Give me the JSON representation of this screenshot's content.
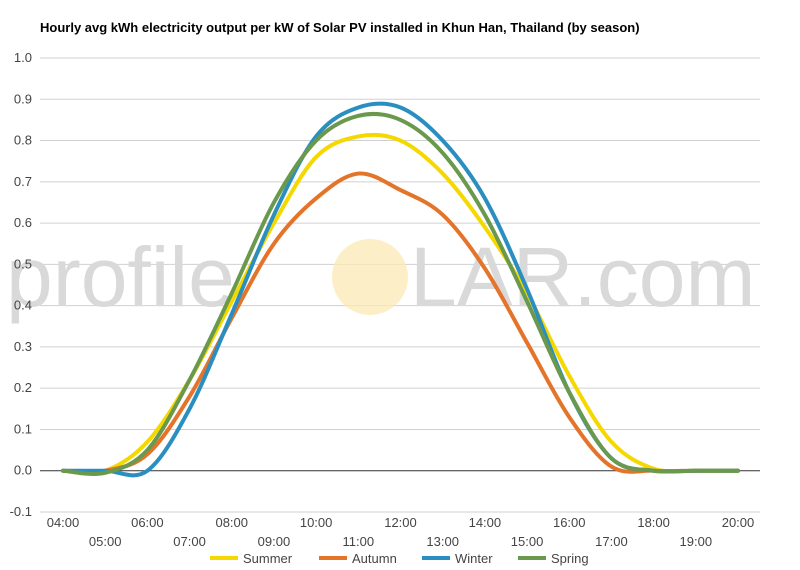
{
  "chart_data": {
    "type": "line",
    "title": "Hourly avg kWh electricity output per kW of Solar PV installed in Khun Han, Thailand (by season)",
    "watermark": {
      "left": "profile",
      "right": "LAR.com"
    },
    "xlabel": "",
    "ylabel": "",
    "ylim": [
      -0.1,
      1.0
    ],
    "yticks": [
      "-0.1",
      "0.0",
      "0.1",
      "0.2",
      "0.3",
      "0.4",
      "0.5",
      "0.6",
      "0.7",
      "0.8",
      "0.9",
      "1.0"
    ],
    "x_tick_labels_upper": [
      "04:00",
      "06:00",
      "08:00",
      "10:00",
      "12:00",
      "14:00",
      "16:00",
      "18:00",
      "20:00"
    ],
    "x_tick_labels_lower": [
      "05:00",
      "07:00",
      "09:00",
      "11:00",
      "13:00",
      "15:00",
      "17:00",
      "19:00"
    ],
    "x": [
      4,
      5,
      6,
      7,
      8,
      9,
      10,
      11,
      12,
      13,
      14,
      15,
      16,
      17,
      18,
      19,
      20
    ],
    "grid": true,
    "legend_position": "bottom",
    "series": [
      {
        "name": "Summer",
        "color": "#f5d800",
        "values": [
          0.0,
          0.0,
          0.07,
          0.22,
          0.41,
          0.6,
          0.76,
          0.81,
          0.8,
          0.72,
          0.59,
          0.43,
          0.23,
          0.07,
          0.005,
          0.0,
          0.0
        ]
      },
      {
        "name": "Autumn",
        "color": "#e3742a",
        "values": [
          0.0,
          0.0,
          0.04,
          0.18,
          0.37,
          0.55,
          0.66,
          0.72,
          0.68,
          0.62,
          0.49,
          0.31,
          0.13,
          0.01,
          0.0,
          0.0,
          0.0
        ]
      },
      {
        "name": "Winter",
        "color": "#2a8fc0",
        "values": [
          0.0,
          0.0,
          0.0,
          0.15,
          0.38,
          0.62,
          0.81,
          0.88,
          0.88,
          0.8,
          0.66,
          0.44,
          0.19,
          0.03,
          0.0,
          0.0,
          0.0
        ]
      },
      {
        "name": "Spring",
        "color": "#6a994e",
        "values": [
          0.0,
          -0.005,
          0.05,
          0.22,
          0.43,
          0.65,
          0.8,
          0.86,
          0.85,
          0.77,
          0.62,
          0.41,
          0.19,
          0.03,
          0.0,
          0.0,
          0.0
        ]
      }
    ]
  }
}
